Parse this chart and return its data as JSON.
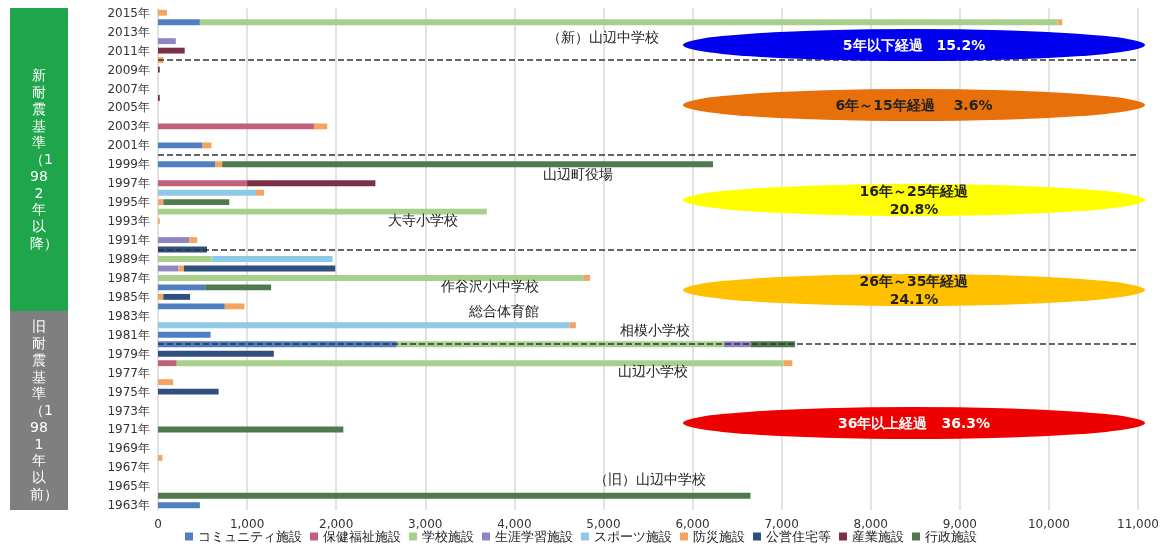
{
  "chart_data": {
    "type": "bar",
    "orientation": "horizontal",
    "stacked": true,
    "x": [
      1963,
      1964,
      1965,
      1966,
      1967,
      1968,
      1969,
      1970,
      1971,
      1972,
      1973,
      1974,
      1975,
      1976,
      1977,
      1978,
      1979,
      1980,
      1981,
      1982,
      1983,
      1984,
      1985,
      1986,
      1987,
      1988,
      1989,
      1990,
      1991,
      1992,
      1993,
      1994,
      1995,
      1996,
      1997,
      1998,
      1999,
      2000,
      2001,
      2002,
      2003,
      2004,
      2005,
      2006,
      2007,
      2008,
      2009,
      2010,
      2011,
      2012,
      2013,
      2014,
      2015
    ],
    "ylim": [
      1962.5,
      2015.5
    ],
    "yticks": [
      {
        "value": 1963,
        "label": "1963年"
      },
      {
        "value": 1965,
        "label": "1965年"
      },
      {
        "value": 1967,
        "label": "1967年"
      },
      {
        "value": 1969,
        "label": "1969年"
      },
      {
        "value": 1971,
        "label": "1971年"
      },
      {
        "value": 1973,
        "label": "1973年"
      },
      {
        "value": 1975,
        "label": "1975年"
      },
      {
        "value": 1977,
        "label": "1977年"
      },
      {
        "value": 1979,
        "label": "1979年"
      },
      {
        "value": 1981,
        "label": "1981年"
      },
      {
        "value": 1983,
        "label": "1983年"
      },
      {
        "value": 1985,
        "label": "1985年"
      },
      {
        "value": 1987,
        "label": "1987年"
      },
      {
        "value": 1989,
        "label": "1989年"
      },
      {
        "value": 1991,
        "label": "1991年"
      },
      {
        "value": 1993,
        "label": "1993年"
      },
      {
        "value": 1995,
        "label": "1995年"
      },
      {
        "value": 1997,
        "label": "1997年"
      },
      {
        "value": 1999,
        "label": "1999年"
      },
      {
        "value": 2001,
        "label": "2001年"
      },
      {
        "value": 2003,
        "label": "2003年"
      },
      {
        "value": 2005,
        "label": "2005年"
      },
      {
        "value": 2007,
        "label": "2007年"
      },
      {
        "value": 2009,
        "label": "2009年"
      },
      {
        "value": 2011,
        "label": "2011年"
      },
      {
        "value": 2013,
        "label": "2013年"
      },
      {
        "value": 2015,
        "label": "2015年"
      }
    ],
    "xlim": [
      0,
      11000
    ],
    "xticks": [
      0,
      {
        "value": 1000,
        "label": "1,000"
      },
      {
        "value": 2000,
        "label": "2,000"
      },
      {
        "value": 3000,
        "label": "3,000"
      },
      {
        "value": 4000,
        "label": "4,000"
      },
      {
        "value": 5000,
        "label": "5,000"
      },
      {
        "value": 6000,
        "label": "6,000"
      },
      {
        "value": 7000,
        "label": "7,000"
      },
      {
        "value": 8000,
        "label": "8,000"
      },
      {
        "value": 9000,
        "label": "9,000"
      },
      {
        "value": 10000,
        "label": "10,000"
      },
      {
        "value": 11000,
        "label": "11,000"
      }
    ],
    "grid": "x",
    "legend": "bottom",
    "series": [
      {
        "name": "コミュニティ施設",
        "color": "#4f7fc0",
        "values": [
          470,
          null,
          null,
          null,
          null,
          null,
          null,
          null,
          null,
          null,
          null,
          null,
          null,
          null,
          null,
          null,
          null,
          2680,
          590,
          null,
          null,
          750,
          null,
          530,
          null,
          null,
          null,
          null,
          null,
          null,
          null,
          null,
          null,
          null,
          null,
          null,
          640,
          null,
          500,
          null,
          null,
          null,
          null,
          null,
          null,
          null,
          null,
          null,
          null,
          null,
          null,
          470,
          null
        ]
      },
      {
        "name": "保健福祉施設",
        "color": "#c0607a",
        "values": [
          null,
          null,
          null,
          null,
          null,
          null,
          null,
          null,
          null,
          null,
          null,
          null,
          null,
          null,
          null,
          210,
          null,
          null,
          null,
          null,
          null,
          null,
          null,
          null,
          null,
          null,
          null,
          null,
          null,
          null,
          null,
          null,
          null,
          null,
          1000,
          null,
          null,
          null,
          null,
          null,
          1750,
          null,
          null,
          null,
          null,
          null,
          null,
          null,
          null,
          null,
          null,
          null,
          null
        ]
      },
      {
        "name": "学校施設",
        "color": "#a8d08d",
        "values": [
          null,
          null,
          null,
          null,
          null,
          null,
          null,
          null,
          null,
          null,
          null,
          null,
          null,
          null,
          null,
          6810,
          null,
          3670,
          null,
          null,
          null,
          null,
          null,
          null,
          4780,
          null,
          600,
          null,
          null,
          null,
          null,
          3690,
          null,
          null,
          null,
          null,
          null,
          null,
          null,
          null,
          null,
          null,
          null,
          null,
          null,
          null,
          null,
          null,
          null,
          null,
          null,
          9630,
          null
        ]
      },
      {
        "name": "生涯学習施設",
        "color": "#8e86c4",
        "values": [
          null,
          null,
          null,
          null,
          null,
          null,
          null,
          null,
          null,
          null,
          null,
          null,
          null,
          null,
          null,
          null,
          null,
          300,
          null,
          null,
          null,
          null,
          null,
          null,
          null,
          230,
          null,
          null,
          350,
          null,
          null,
          null,
          null,
          null,
          null,
          null,
          null,
          null,
          null,
          null,
          null,
          null,
          null,
          null,
          null,
          null,
          null,
          null,
          null,
          200,
          null,
          null,
          null
        ]
      },
      {
        "name": "スポーツ施設",
        "color": "#8ecae6",
        "values": [
          null,
          null,
          null,
          null,
          null,
          null,
          null,
          null,
          null,
          null,
          null,
          null,
          null,
          null,
          null,
          null,
          null,
          null,
          null,
          4620,
          null,
          null,
          null,
          null,
          null,
          null,
          1360,
          null,
          null,
          null,
          null,
          null,
          null,
          1100,
          null,
          null,
          null,
          null,
          null,
          null,
          null,
          null,
          null,
          null,
          null,
          null,
          null,
          null,
          null,
          null,
          null,
          null,
          null
        ]
      },
      {
        "name": "防災施設",
        "color": "#f4a460",
        "values": [
          null,
          null,
          null,
          null,
          null,
          50,
          null,
          null,
          null,
          null,
          null,
          null,
          null,
          170,
          null,
          100,
          null,
          null,
          null,
          70,
          null,
          220,
          60,
          null,
          70,
          60,
          null,
          null,
          90,
          null,
          20,
          null,
          60,
          90,
          null,
          null,
          80,
          null,
          100,
          null,
          150,
          null,
          null,
          null,
          null,
          null,
          null,
          60,
          null,
          null,
          null,
          50,
          100
        ]
      },
      {
        "name": "公営住宅等",
        "color": "#2f4f7f",
        "values": [
          null,
          null,
          null,
          null,
          null,
          null,
          null,
          null,
          null,
          null,
          null,
          null,
          680,
          null,
          null,
          null,
          1300,
          null,
          null,
          null,
          null,
          null,
          300,
          null,
          null,
          1700,
          null,
          550,
          null,
          null,
          null,
          null,
          null,
          null,
          null,
          null,
          null,
          null,
          null,
          null,
          null,
          null,
          null,
          null,
          null,
          null,
          null,
          null,
          null,
          null,
          null,
          null,
          null
        ]
      },
      {
        "name": "産業施設",
        "color": "#7b3045",
        "values": [
          null,
          null,
          null,
          null,
          null,
          null,
          null,
          null,
          null,
          null,
          null,
          null,
          null,
          null,
          null,
          null,
          null,
          null,
          null,
          null,
          null,
          null,
          null,
          null,
          null,
          null,
          null,
          null,
          null,
          null,
          null,
          null,
          null,
          null,
          1440,
          null,
          null,
          null,
          null,
          null,
          null,
          null,
          null,
          20,
          null,
          null,
          20,
          null,
          300,
          null,
          null,
          null,
          null
        ]
      },
      {
        "name": "行政施設",
        "color": "#4e7a4e",
        "values": [
          null,
          6650,
          null,
          null,
          null,
          null,
          null,
          null,
          2080,
          null,
          null,
          null,
          null,
          null,
          null,
          null,
          null,
          500,
          null,
          null,
          null,
          null,
          null,
          740,
          null,
          null,
          null,
          null,
          null,
          null,
          null,
          null,
          740,
          null,
          null,
          null,
          5510,
          null,
          null,
          null,
          null,
          null,
          null,
          null,
          null,
          null,
          null,
          null,
          null,
          null,
          null,
          null,
          null
        ]
      }
    ],
    "ref_lines": [
      {
        "axis": "y",
        "value": 2010,
        "color": "#333333",
        "line_style": "dashed"
      },
      {
        "axis": "y",
        "value": 2000,
        "color": "#333333",
        "line_style": "dashed"
      },
      {
        "axis": "y",
        "value": 1990,
        "color": "#333333",
        "line_style": "dashed"
      },
      {
        "axis": "y",
        "value": 1980,
        "color": "#333333",
        "line_style": "dashed"
      }
    ],
    "annotations": [
      "新耐震基準（1982年以降）",
      "旧耐震基準（1981年以前）",
      "5年以下経過　15.2%",
      "6年～15年経過　 3.6%",
      "16年～25年経過\n20.8%",
      "26年～35年経過\n24.1%",
      "36年以上経過　36.3%",
      "（新）山辺中学校",
      "山辺町役場",
      "大寺小学校",
      "作谷沢小中学校",
      "総合体育館",
      "相模小学校",
      "山辺小学校",
      "（旧）山辺中学校"
    ]
  }
}
